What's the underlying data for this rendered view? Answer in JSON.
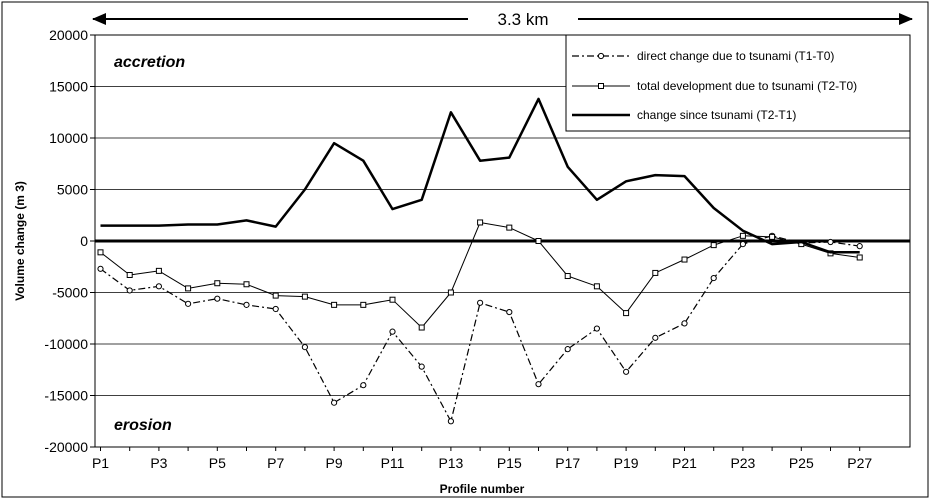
{
  "chart_data": {
    "type": "line",
    "title": "",
    "xlabel": "Profile number",
    "ylabel": "Volume change (m 3)",
    "ylim": [
      -20000,
      20000
    ],
    "yticks": [
      -20000,
      -15000,
      -10000,
      -5000,
      0,
      5000,
      10000,
      15000,
      20000
    ],
    "grid": "horizontal",
    "legend_position": "top-right",
    "categories": [
      "P1",
      "P2",
      "P3",
      "P4",
      "P5",
      "P6",
      "P7",
      "P8",
      "P9",
      "P10",
      "P11",
      "P12",
      "P13",
      "P14",
      "P15",
      "P16",
      "P17",
      "P18",
      "P19",
      "P20",
      "P21",
      "P22",
      "P23",
      "P24",
      "P25",
      "P26",
      "P27"
    ],
    "x_tick_labels": [
      "P1",
      "P3",
      "P5",
      "P7",
      "P9",
      "P11",
      "P13",
      "P15",
      "P17",
      "P19",
      "P21",
      "P23",
      "P25",
      "P27"
    ],
    "series": [
      {
        "name": "direct change due to tsunami (T1-T0)",
        "style": "dash-dot-circle",
        "values": [
          -2700,
          -4800,
          -4400,
          -6100,
          -5600,
          -6200,
          -6600,
          -10300,
          -15700,
          -14000,
          -8800,
          -12200,
          -17500,
          -6000,
          -6900,
          -13900,
          -10500,
          -8500,
          -12700,
          -9400,
          -8000,
          -3600,
          -300,
          500,
          -200,
          -100,
          -500
        ]
      },
      {
        "name": "total development due to tsunami (T2-T0)",
        "style": "thin-square",
        "values": [
          -1100,
          -3300,
          -2900,
          -4600,
          -4100,
          -4200,
          -5300,
          -5400,
          -6200,
          -6200,
          -5700,
          -8400,
          -5000,
          1800,
          1300,
          0,
          -3400,
          -4400,
          -7000,
          -3100,
          -1800,
          -400,
          500,
          400,
          -300,
          -1200,
          -1600
        ]
      },
      {
        "name": "change since tsunami (T2-T1)",
        "style": "thick",
        "values": [
          1500,
          1500,
          1500,
          1600,
          1600,
          2000,
          1400,
          5000,
          9500,
          7800,
          3100,
          4000,
          12500,
          7800,
          8100,
          13800,
          7200,
          4000,
          5800,
          6400,
          6300,
          3200,
          1000,
          -300,
          -100,
          -1100,
          -1100
        ]
      }
    ],
    "annotations": {
      "top_label": "accretion",
      "bottom_label": "erosion",
      "distance": "3.3 km"
    }
  }
}
